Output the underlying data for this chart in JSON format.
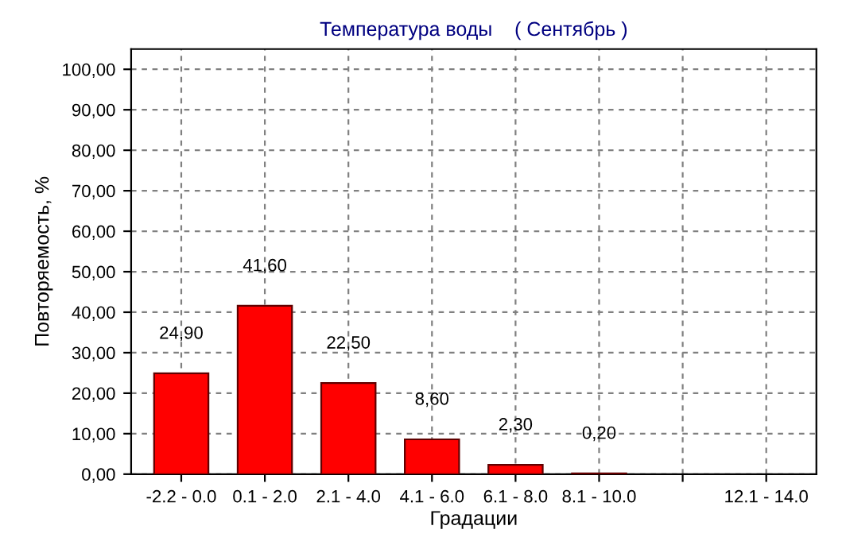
{
  "chart_data": {
    "type": "bar",
    "title": "Температура воды    ( Сентябрь )",
    "xlabel": "Градации",
    "ylabel": "Повторяемость, %",
    "categories": [
      "-2.2 - 0.0",
      "0.1 - 2.0",
      "2.1 - 4.0",
      "4.1 - 6.0",
      "6.1 - 8.0",
      "8.1 - 10.0",
      null,
      "12.1 - 14.0"
    ],
    "values": [
      24.9,
      41.6,
      22.5,
      8.6,
      2.3,
      0.2,
      0,
      0
    ],
    "value_labels": [
      "24,90",
      "41,60",
      "22,50",
      "8,60",
      "2,30",
      "0,20",
      null,
      null
    ],
    "color": "#ff0000",
    "ylim": [
      0,
      105
    ],
    "yticks": [
      {
        "value": 0,
        "label": "0,00"
      },
      {
        "value": 10,
        "label": "10,00"
      },
      {
        "value": 20,
        "label": "20,00"
      },
      {
        "value": 30,
        "label": "30,00"
      },
      {
        "value": 40,
        "label": "40,00"
      },
      {
        "value": 50,
        "label": "50,00"
      },
      {
        "value": 60,
        "label": "60,00"
      },
      {
        "value": 70,
        "label": "70,00"
      },
      {
        "value": 80,
        "label": "80,00"
      },
      {
        "value": 90,
        "label": "90,00"
      },
      {
        "value": 100,
        "label": "100,00"
      }
    ],
    "grid": true
  }
}
